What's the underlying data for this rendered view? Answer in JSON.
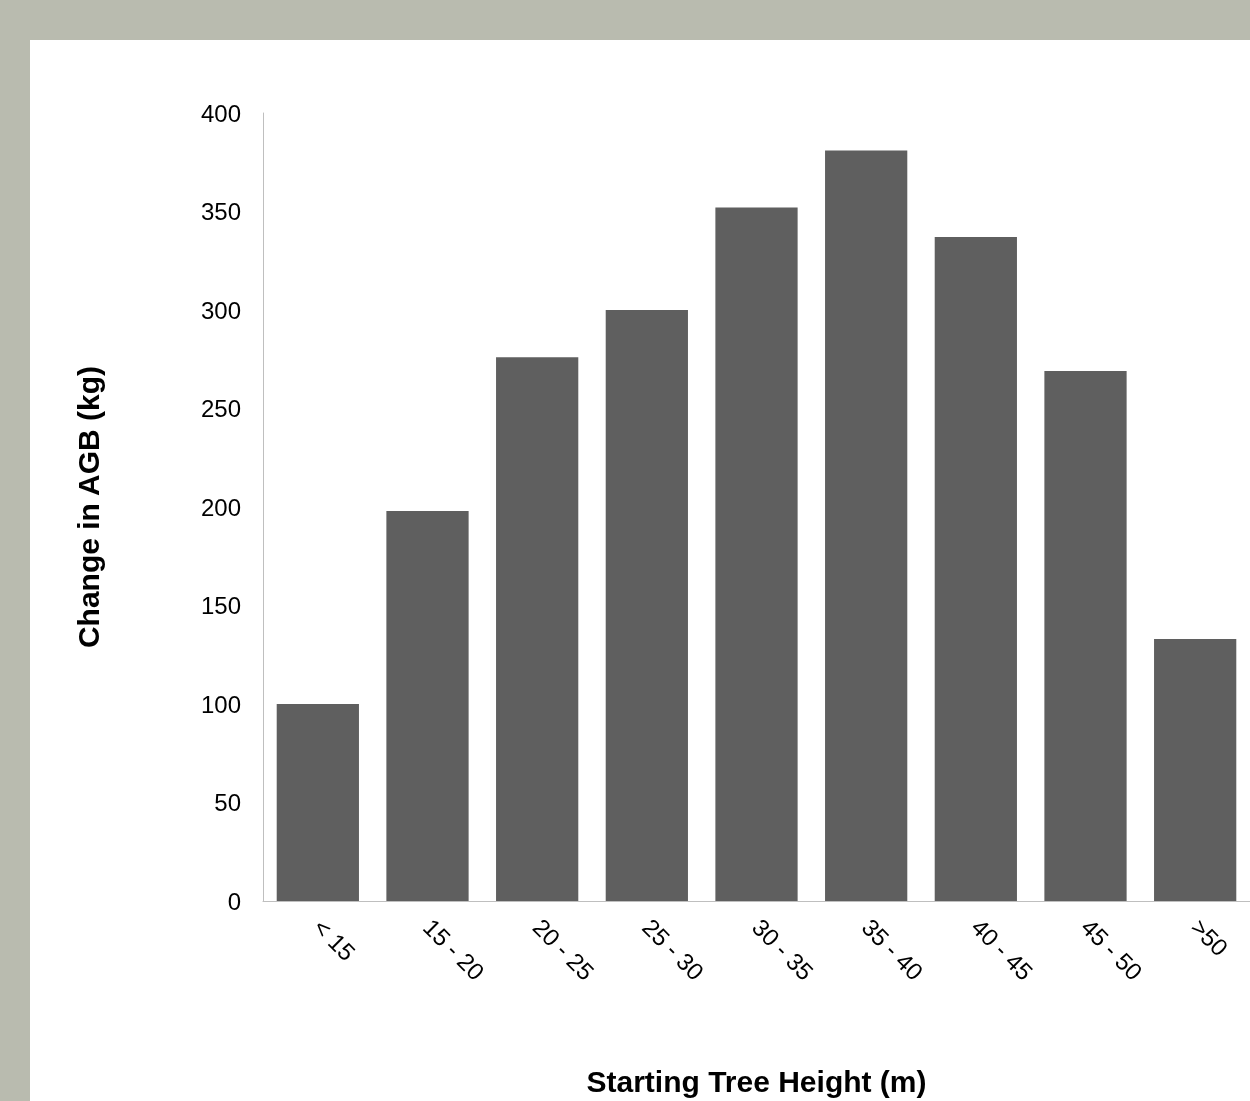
{
  "chart_data": {
    "type": "bar",
    "xlabel": "Starting Tree Height (m)",
    "ylabel": "Change in AGB (kg)",
    "categories": [
      "< 15",
      "15 - 20",
      "20 - 25",
      "25 - 30",
      "30 - 35",
      "35 - 40",
      "40 - 45",
      "45 - 50",
      ">50"
    ],
    "values": [
      100,
      198,
      276,
      300,
      352,
      381,
      337,
      269,
      133
    ],
    "color": "#5f5f5f",
    "ylim": [
      0,
      400
    ],
    "yticks": [
      0,
      50,
      100,
      150,
      200,
      250,
      300,
      350,
      400
    ],
    "grid": false
  }
}
